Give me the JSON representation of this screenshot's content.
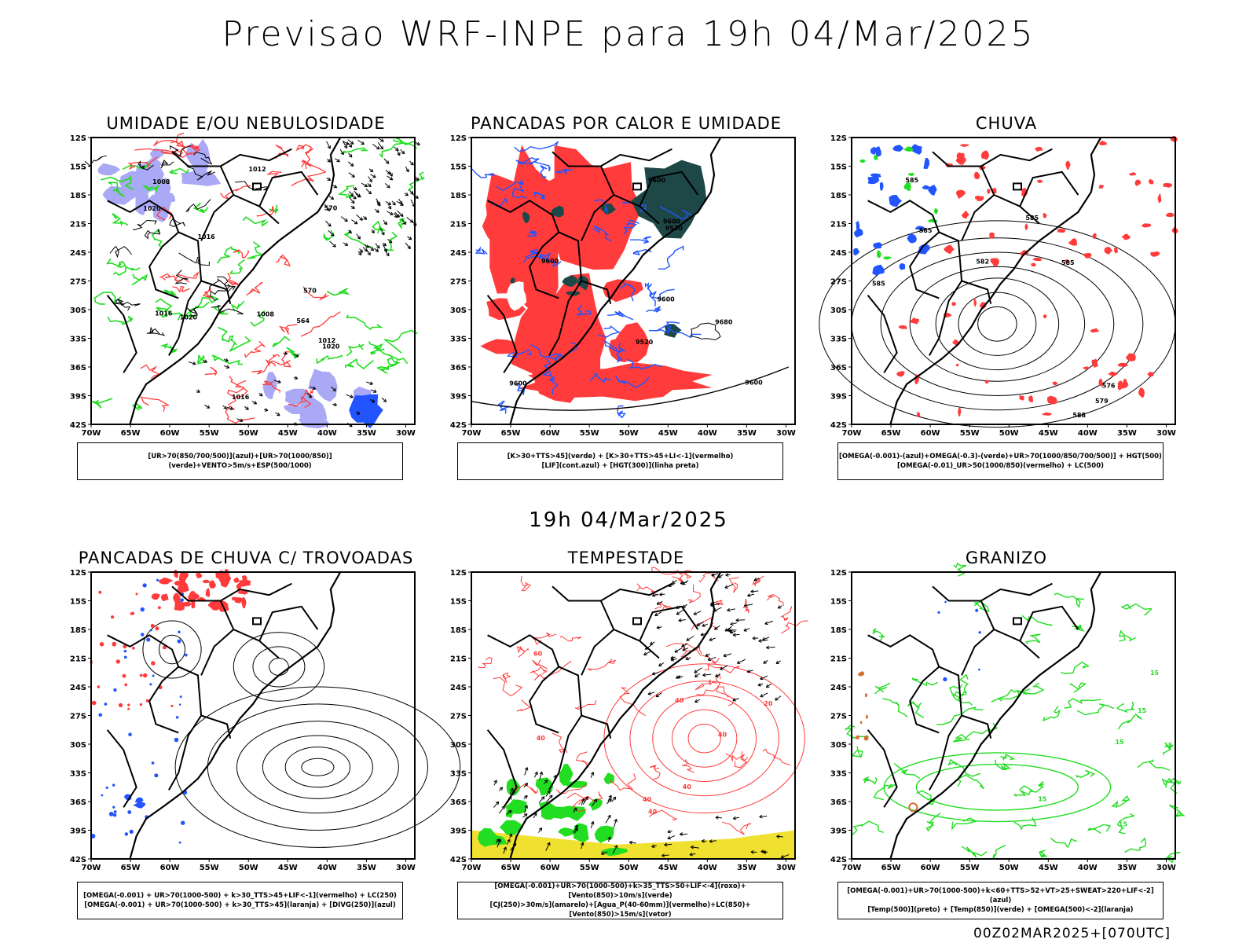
{
  "title": "Previsao WRF-INPE  para 19h 04/Mar/2025",
  "mid_title": "19h 04/Mar/2025",
  "footer": "00Z02MAR2025+[070UTC]",
  "lat_labels": [
    "12S",
    "15S",
    "18S",
    "21S",
    "24S",
    "27S",
    "30S",
    "33S",
    "36S",
    "39S",
    "42S"
  ],
  "lon_labels": [
    "70W",
    "65W",
    "60W",
    "55W",
    "50W",
    "45W",
    "40W",
    "35W",
    "30W"
  ],
  "panels": [
    {
      "title": "UMIDADE E/OU NEBULOSIDADE",
      "legend": [
        "[UR>70(850/700/500)](azul)+[UR>70(1000/850)](verde)+VENTO>5m/s+ESP(500/1000)"
      ],
      "labels": [
        "1008",
        "1008",
        "1012",
        "1012",
        "1016",
        "1016",
        "1020",
        "1020",
        "1020",
        "1016",
        "570",
        "570",
        "564"
      ]
    },
    {
      "title": "PANCADAS POR CALOR E UMIDADE",
      "legend": [
        "[K>30+TTS>45](verde) + [K>30+TTS>45+LI<-1](vermelho)",
        "[LIF](cont.azul) + [HGT(300)](linha preta)"
      ],
      "labels": [
        "9600",
        "9600",
        "9600",
        "9600",
        "9520",
        "9600",
        "9600",
        "9520",
        "9680"
      ]
    },
    {
      "title": "CHUVA",
      "legend": [
        "[OMEGA(-0.001)-(azul)+OMEGA(-0.3)-(verde)+UR>70(1000/850/700/500)] + HGT(500)",
        "[OMEGA(-0.01)_UR>50(1000/850)(vermelho) + LC(500)"
      ],
      "labels": [
        "585",
        "585",
        "585",
        "585",
        "582",
        "579",
        "585",
        "588",
        "576"
      ]
    },
    {
      "title": "PANCADAS DE CHUVA C/ TROVOADAS",
      "legend": [
        "[OMEGA(-0.001) + UR>70(1000-500) + k>30_TTS>45+LIF<-1](vermelho) + LC(250)",
        "[OMEGA(-0.001) + UR>70(1000-500) + k>30_TTS>45](laranja) + [DIVG(250)](azul)"
      ],
      "labels": []
    },
    {
      "title": "TEMPESTADE",
      "legend": [
        "[OMEGA(-0.001)+UR>70(1000-500)+k>35_TTS>50+LIF<-4](roxo)+[Vento(850)>10m/s](verde)",
        "[CJ(250)>30m/s](amarelo)+[Agua_P(40-60mm)](vermelho)+LC(850)+[Vento(850)>15m/s](vetor)"
      ],
      "labels": [
        "40",
        "40",
        "40",
        "40",
        "40",
        "60",
        "20",
        "40"
      ]
    },
    {
      "title": "GRANIZO",
      "legend": [
        "[OMEGA(-0.001)+UR>70(1000-500)+k<60+TTS>52+VT>25+SWEAT>220+LIF<-2](azul)",
        "[Temp(500)](preto) + [Temp(850)](verde) + [OMEGA(500)<-2](laranja)"
      ],
      "labels": [
        "15",
        "15",
        "15",
        "15",
        "15",
        "15"
      ]
    }
  ],
  "colors": {
    "red": "#ff3b3b",
    "green": "#22dd22",
    "blue": "#2255ff",
    "lavender": "#a9a9f5",
    "darkteal": "#1e4848",
    "yellow": "#f0e030",
    "purple": "#c040c0"
  }
}
